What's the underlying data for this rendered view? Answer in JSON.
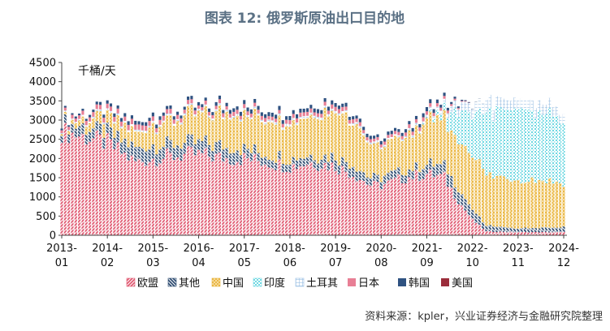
{
  "chart_data": {
    "type": "bar",
    "stacked": true,
    "title": "图表 12: 俄罗斯原油出口目的地",
    "unit_label": "千桶/天",
    "ylim": [
      0,
      4500
    ],
    "y_ticks": [
      0,
      500,
      1000,
      1500,
      2000,
      2500,
      3000,
      3500,
      4000,
      4500
    ],
    "x_tick_labels": [
      [
        "2013-",
        "01"
      ],
      [
        "2014-",
        "02"
      ],
      [
        "2015-",
        "03"
      ],
      [
        "2016-",
        "04"
      ],
      [
        "2017-",
        "05"
      ],
      [
        "2018-",
        "06"
      ],
      [
        "2019-",
        "07"
      ],
      [
        "2020-",
        "08"
      ],
      [
        "2021-",
        "09"
      ],
      [
        "2022-",
        "10"
      ],
      [
        "2023-",
        "11"
      ],
      [
        "2024-",
        "12"
      ]
    ],
    "x_range": [
      "2013-01",
      "2024-12"
    ],
    "anchors": [
      {
        "date": "2013-01",
        "values": [
          2700,
          200,
          50,
          0,
          30,
          80,
          40,
          0
        ]
      },
      {
        "date": "2013-06",
        "values": [
          2600,
          250,
          150,
          0,
          40,
          100,
          50,
          0
        ]
      },
      {
        "date": "2014-02",
        "values": [
          2400,
          280,
          350,
          0,
          50,
          120,
          80,
          0
        ]
      },
      {
        "date": "2014-10",
        "values": [
          1900,
          350,
          400,
          0,
          50,
          130,
          90,
          0
        ]
      },
      {
        "date": "2015-03",
        "values": [
          2000,
          350,
          550,
          0,
          50,
          120,
          90,
          0
        ]
      },
      {
        "date": "2016-01",
        "values": [
          2100,
          300,
          700,
          0,
          50,
          100,
          80,
          0
        ]
      },
      {
        "date": "2016-04",
        "values": [
          2100,
          300,
          750,
          0,
          50,
          90,
          80,
          0
        ]
      },
      {
        "date": "2016-12",
        "values": [
          2000,
          300,
          850,
          0,
          50,
          100,
          90,
          0
        ]
      },
      {
        "date": "2017-05",
        "values": [
          2000,
          250,
          900,
          0,
          50,
          100,
          100,
          0
        ]
      },
      {
        "date": "2017-12",
        "values": [
          1900,
          200,
          900,
          0,
          60,
          100,
          100,
          0
        ]
      },
      {
        "date": "2018-06",
        "values": [
          1800,
          200,
          950,
          0,
          60,
          100,
          100,
          0
        ]
      },
      {
        "date": "2018-12",
        "values": [
          1900,
          200,
          1000,
          0,
          60,
          100,
          100,
          0
        ]
      },
      {
        "date": "2019-07",
        "values": [
          1800,
          250,
          1200,
          0,
          60,
          100,
          100,
          0
        ]
      },
      {
        "date": "2019-12",
        "values": [
          1600,
          250,
          1200,
          0,
          60,
          100,
          90,
          0
        ]
      },
      {
        "date": "2020-05",
        "values": [
          1300,
          200,
          800,
          0,
          50,
          80,
          80,
          0
        ]
      },
      {
        "date": "2020-08",
        "values": [
          1300,
          200,
          800,
          0,
          50,
          80,
          80,
          0
        ]
      },
      {
        "date": "2021-03",
        "values": [
          1500,
          200,
          900,
          0,
          50,
          90,
          80,
          0
        ]
      },
      {
        "date": "2021-09",
        "values": [
          1600,
          250,
          1100,
          20,
          60,
          100,
          100,
          0
        ]
      },
      {
        "date": "2022-02",
        "values": [
          1500,
          300,
          1200,
          200,
          100,
          80,
          80,
          0
        ]
      },
      {
        "date": "2022-06",
        "values": [
          900,
          300,
          1300,
          800,
          200,
          30,
          40,
          0
        ]
      },
      {
        "date": "2022-10",
        "values": [
          400,
          250,
          1500,
          1100,
          250,
          0,
          10,
          0
        ]
      },
      {
        "date": "2023-02",
        "values": [
          100,
          150,
          1300,
          1600,
          300,
          0,
          0,
          0
        ]
      },
      {
        "date": "2023-11",
        "values": [
          80,
          100,
          1300,
          1800,
          250,
          0,
          0,
          0
        ]
      },
      {
        "date": "2024-06",
        "values": [
          80,
          120,
          1250,
          1700,
          250,
          0,
          0,
          0
        ]
      },
      {
        "date": "2024-12",
        "values": [
          80,
          130,
          1150,
          1600,
          250,
          0,
          0,
          0
        ]
      }
    ],
    "series": [
      {
        "name": "欧盟",
        "color": "#e05a72",
        "pattern": "diag-right"
      },
      {
        "name": "其他",
        "color": "#2f4d72",
        "pattern": "diag-left"
      },
      {
        "name": "中国",
        "color": "#e8b33c",
        "pattern": "cross"
      },
      {
        "name": "印度",
        "color": "#6fd8e2",
        "pattern": "dots"
      },
      {
        "name": "土耳其",
        "color": "#9cc0e4",
        "pattern": "grid"
      },
      {
        "name": "日本",
        "color": "#e87f95",
        "pattern": "solid"
      },
      {
        "name": "韩国",
        "color": "#2f5281",
        "pattern": "solid"
      },
      {
        "name": "美国",
        "color": "#9b2d3b",
        "pattern": "solid"
      }
    ]
  },
  "source": "资料来源：kpler，兴业证券经济与金融研究院整理"
}
